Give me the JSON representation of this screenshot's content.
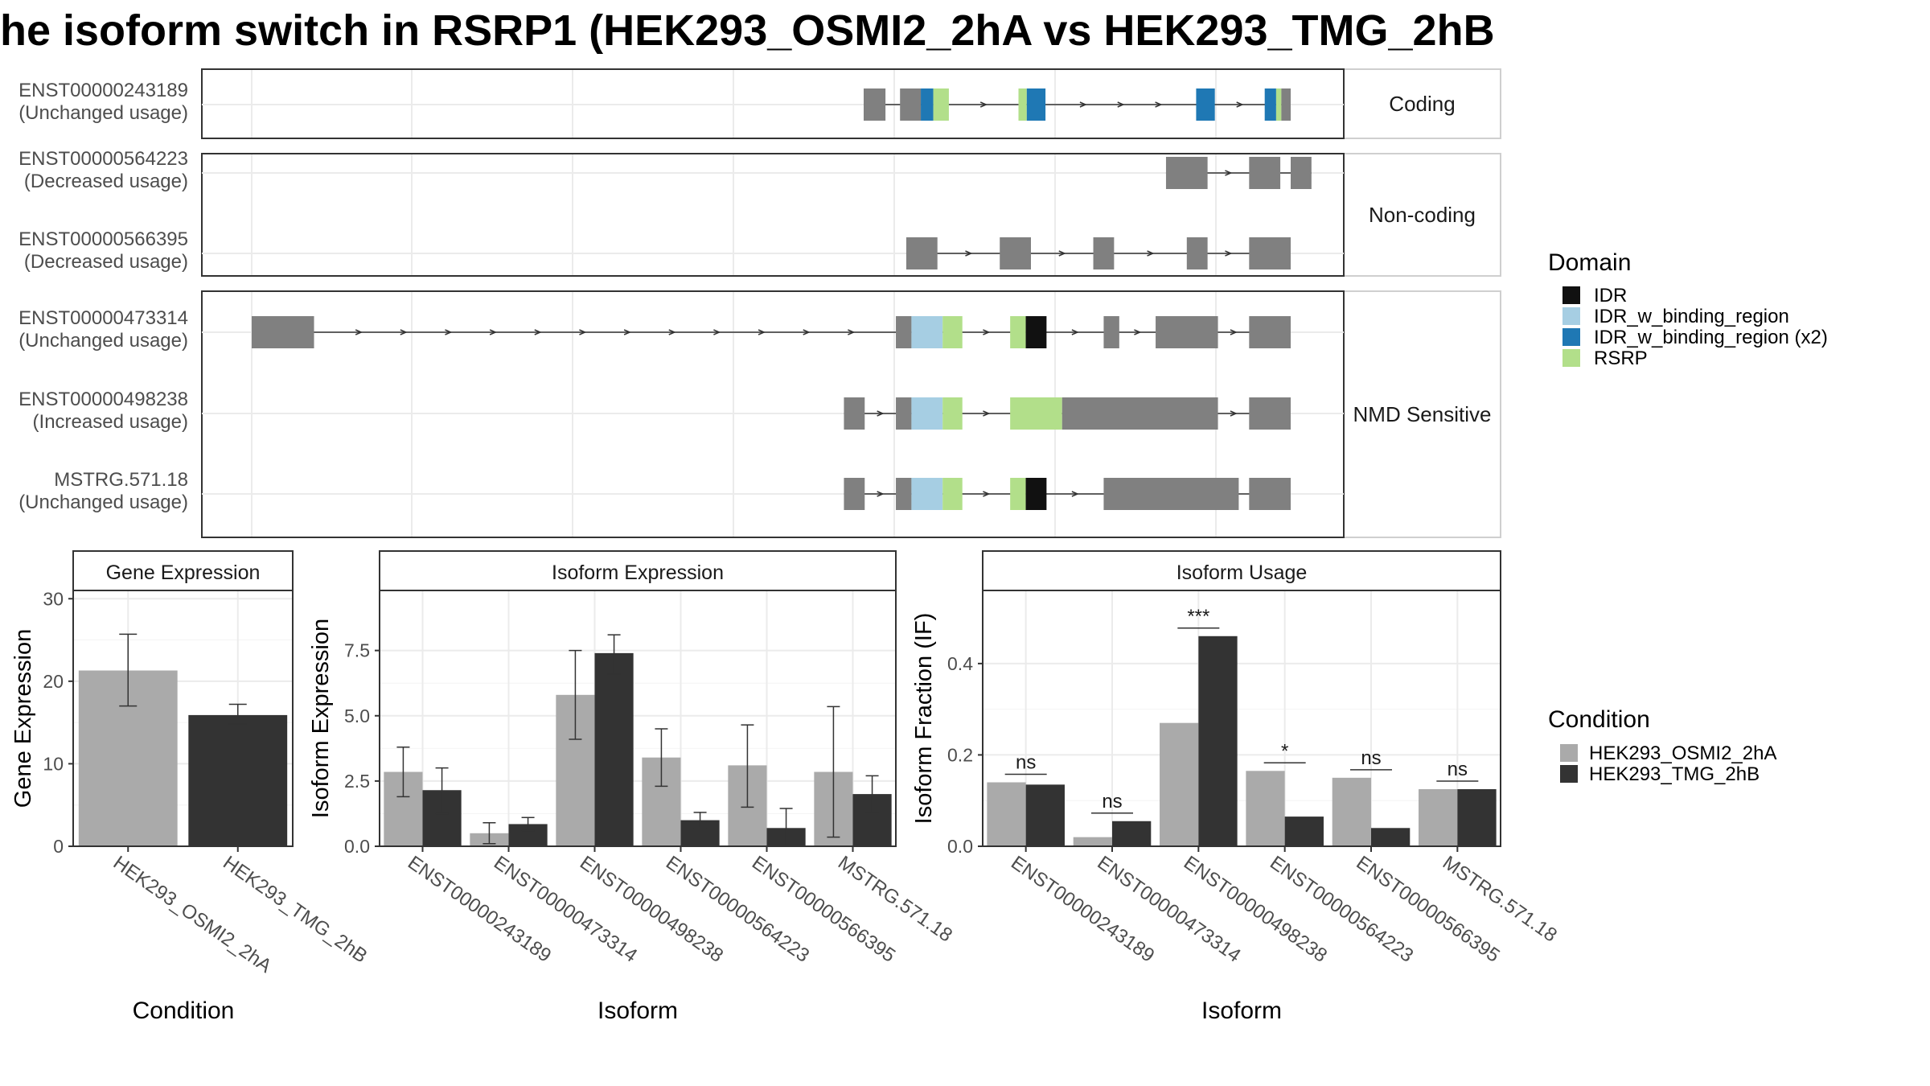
{
  "title": "he isoform switch in RSRP1 (HEK293_OSMI2_2hA vs HEK293_TMG_2hB",
  "colors": {
    "cond1": "#aaaaaa",
    "cond2": "#333333",
    "exon": "#808080",
    "IDR": "#111111",
    "IDR_w_binding_region": "#a6cee3",
    "IDR_w_binding_region (x2)": "#1f78b4",
    "RSRP": "#b2df8a"
  },
  "structure": {
    "facets": [
      "Coding",
      "Non-coding",
      "NMD Sensitive"
    ],
    "coord_lim": [
      0,
      1000
    ],
    "transcripts": [
      {
        "id": "ENST00000243189",
        "usage": "(Unchanged usage)",
        "facet": 0,
        "exons": [
          [
            0.589,
            0.61
          ],
          [
            0.624,
            0.644
          ],
          [
            0.644,
            0.656,
            "IDR_w_binding_region (x2)"
          ],
          [
            0.656,
            0.671,
            "RSRP"
          ],
          [
            0.738,
            0.746,
            "RSRP"
          ],
          [
            0.746,
            0.764,
            "IDR_w_binding_region (x2)"
          ],
          [
            0.909,
            0.927,
            "IDR_w_binding_region (x2)"
          ],
          [
            0.975,
            0.986,
            "IDR_w_binding_region (x2)"
          ],
          [
            0.986,
            0.991,
            "RSRP"
          ],
          [
            0.991,
            1.0
          ]
        ]
      },
      {
        "id": "ENST00000564223",
        "usage": "(Decreased usage)",
        "facet": 1,
        "exons": [
          [
            0.88,
            0.92
          ],
          [
            0.96,
            0.99
          ],
          [
            1.0,
            1.02
          ]
        ]
      },
      {
        "id": "ENST00000566395",
        "usage": "(Decreased usage)",
        "facet": 1,
        "exons": [
          [
            0.63,
            0.66
          ],
          [
            0.72,
            0.75
          ],
          [
            0.81,
            0.83
          ],
          [
            0.9,
            0.92
          ],
          [
            0.96,
            1.0
          ]
        ]
      },
      {
        "id": "ENST00000473314",
        "usage": "(Unchanged usage)",
        "facet": 2,
        "exons": [
          [
            0.0,
            0.06
          ],
          [
            0.62,
            0.635
          ],
          [
            0.635,
            0.665,
            "IDR_w_binding_region"
          ],
          [
            0.665,
            0.684,
            "RSRP"
          ],
          [
            0.73,
            0.745,
            "RSRP"
          ],
          [
            0.745,
            0.765,
            "IDR"
          ],
          [
            0.82,
            0.835
          ],
          [
            0.87,
            0.93
          ],
          [
            0.96,
            1.0
          ]
        ]
      },
      {
        "id": "ENST00000498238",
        "usage": "(Increased usage)",
        "facet": 2,
        "exons": [
          [
            0.57,
            0.59
          ],
          [
            0.62,
            0.635
          ],
          [
            0.635,
            0.665,
            "IDR_w_binding_region"
          ],
          [
            0.665,
            0.684,
            "RSRP"
          ],
          [
            0.73,
            0.78,
            "RSRP"
          ],
          [
            0.78,
            0.93
          ],
          [
            0.96,
            1.0
          ]
        ]
      },
      {
        "id": "MSTRG.571.18",
        "usage": "(Unchanged usage)",
        "facet": 2,
        "exons": [
          [
            0.57,
            0.59
          ],
          [
            0.62,
            0.635
          ],
          [
            0.635,
            0.665,
            "IDR_w_binding_region"
          ],
          [
            0.665,
            0.684,
            "RSRP"
          ],
          [
            0.73,
            0.745,
            "RSRP"
          ],
          [
            0.745,
            0.765,
            "IDR"
          ],
          [
            0.82,
            0.95
          ],
          [
            0.96,
            1.0
          ]
        ]
      }
    ]
  },
  "legend_domain": {
    "title": "Domain",
    "items": [
      "IDR",
      "IDR_w_binding_region",
      "IDR_w_binding_region (x2)",
      "RSRP"
    ]
  },
  "legend_condition": {
    "title": "Condition",
    "items": [
      "HEK293_OSMI2_2hA",
      "HEK293_TMG_2hB"
    ]
  },
  "chart_data": [
    {
      "type": "bar",
      "title": "Gene Expression",
      "xlabel": "Condition",
      "ylabel": "Gene Expression",
      "ylim": [
        0,
        31
      ],
      "yticks": [
        0,
        10,
        20,
        30
      ],
      "categories": [
        "HEK293_OSMI2_2hA",
        "HEK293_TMG_2hB"
      ],
      "values": [
        21.3,
        15.9
      ],
      "errors": [
        [
          17.0,
          25.7
        ],
        [
          14.8,
          17.2
        ]
      ]
    },
    {
      "type": "bar",
      "title": "Isoform Expression",
      "xlabel": "Isoform",
      "ylabel": "Isoform Expression",
      "ylim": [
        0,
        9.8
      ],
      "yticks": [
        0.0,
        2.5,
        5.0,
        7.5
      ],
      "ytick_labels": [
        "0.0",
        "2.5",
        "5.0",
        "7.5"
      ],
      "categories": [
        "ENST00000243189",
        "ENST00000473314",
        "ENST00000498238",
        "ENST00000564223",
        "ENST00000566395",
        "MSTRG.571.18"
      ],
      "series": [
        {
          "name": "HEK293_OSMI2_2hA",
          "values": [
            2.85,
            0.5,
            5.8,
            3.4,
            3.1,
            2.85
          ],
          "errors": [
            [
              1.9,
              3.8
            ],
            [
              0.1,
              0.9
            ],
            [
              4.1,
              7.5
            ],
            [
              2.3,
              4.5
            ],
            [
              1.5,
              4.65
            ],
            [
              0.35,
              5.35
            ]
          ]
        },
        {
          "name": "HEK293_TMG_2hB",
          "values": [
            2.15,
            0.85,
            7.4,
            1.0,
            0.7,
            2.0
          ],
          "errors": [
            [
              1.25,
              3.0
            ],
            [
              0.6,
              1.1
            ],
            [
              6.6,
              8.1
            ],
            [
              0.7,
              1.3
            ],
            [
              0.0,
              1.45
            ],
            [
              1.3,
              2.7
            ]
          ]
        }
      ]
    },
    {
      "type": "bar",
      "title": "Isoform Usage",
      "xlabel": "Isoform",
      "ylabel": "Isoform Fraction (IF)",
      "ylim": [
        0,
        0.56
      ],
      "yticks": [
        0.0,
        0.2,
        0.4
      ],
      "ytick_labels": [
        "0.0",
        "0.2",
        "0.4"
      ],
      "categories": [
        "ENST00000243189",
        "ENST00000473314",
        "ENST00000498238",
        "ENST00000564223",
        "ENST00000566395",
        "MSTRG.571.18"
      ],
      "series": [
        {
          "name": "HEK293_OSMI2_2hA",
          "values": [
            0.14,
            0.02,
            0.27,
            0.165,
            0.15,
            0.125
          ]
        },
        {
          "name": "HEK293_TMG_2hB",
          "values": [
            0.135,
            0.055,
            0.46,
            0.065,
            0.04,
            0.125
          ]
        }
      ],
      "significance": [
        "ns",
        "ns",
        "***",
        "*",
        "ns",
        "ns"
      ]
    }
  ]
}
